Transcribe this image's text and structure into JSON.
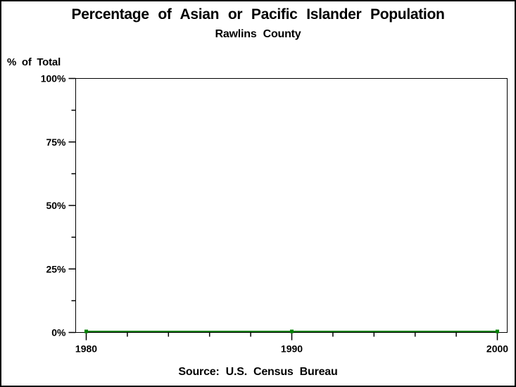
{
  "page": {
    "background": "#ffffff",
    "border_color": "#000000"
  },
  "chart_data": {
    "type": "line",
    "title": "Percentage of Asian or Pacific Islander Population",
    "subtitle": "Rawlins County",
    "ylabel": "% of Total",
    "source_note": "Source: U.S. Census Bureau",
    "x": [
      1980,
      1990,
      2000
    ],
    "categories": [
      "1980",
      "1990",
      "2000"
    ],
    "series": [
      {
        "color": "#008000",
        "marker": "square",
        "values": [
          0,
          0,
          0
        ]
      }
    ],
    "ylim": [
      0,
      100
    ],
    "xlim": [
      1980,
      2000
    ],
    "y_ticks_major": [
      {
        "value": 0,
        "label": "0%"
      },
      {
        "value": 25,
        "label": "25%"
      },
      {
        "value": 50,
        "label": "50%"
      },
      {
        "value": 75,
        "label": "75%"
      },
      {
        "value": 100,
        "label": "100%"
      }
    ],
    "y_ticks_minor": [
      12.5,
      37.5,
      62.5,
      87.5
    ],
    "x_ticks_minor": [
      1982,
      1984,
      1986,
      1988,
      1992,
      1994,
      1996,
      1998
    ],
    "grid": false,
    "legend": "none",
    "axis_color": "#000000",
    "text_color": "#000000"
  }
}
